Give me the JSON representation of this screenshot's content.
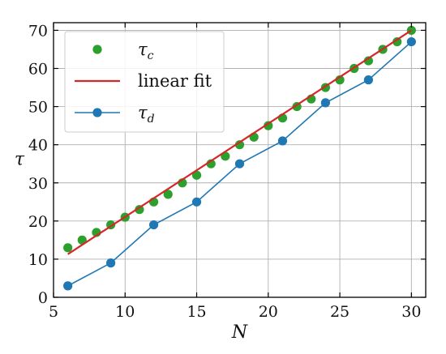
{
  "chart_data": {
    "type": "line",
    "xlabel": "N",
    "ylabel": "τ",
    "xlim": [
      5,
      31
    ],
    "ylim": [
      0,
      72
    ],
    "xticks": [
      5,
      10,
      15,
      20,
      25,
      30
    ],
    "yticks": [
      0,
      10,
      20,
      30,
      40,
      50,
      60,
      70
    ],
    "grid": true,
    "legend_position": "top-left",
    "series": [
      {
        "name": "τc",
        "name_base": "τ",
        "name_sub": "c",
        "kind": "scatter",
        "color": "#2ca02c",
        "x": [
          6,
          7,
          8,
          9,
          10,
          11,
          12,
          13,
          14,
          15,
          16,
          17,
          18,
          19,
          20,
          21,
          22,
          23,
          24,
          25,
          26,
          27,
          28,
          29,
          30
        ],
        "y": [
          13,
          15,
          17,
          19,
          21,
          23,
          25,
          27,
          30,
          32,
          35,
          37,
          40,
          42,
          45,
          47,
          50,
          52,
          55,
          57,
          60,
          62,
          65,
          67,
          70
        ]
      },
      {
        "name": "linear fit",
        "kind": "line",
        "color": "#d62728",
        "x": [
          6,
          30
        ],
        "y": [
          11.3,
          70
        ]
      },
      {
        "name": "τd",
        "name_base": "τ",
        "name_sub": "d",
        "kind": "line-marker",
        "color": "#1f77b4",
        "x": [
          6,
          9,
          12,
          15,
          18,
          21,
          24,
          27,
          30
        ],
        "y": [
          3,
          9,
          19,
          25,
          35,
          41,
          51,
          57,
          67
        ]
      }
    ]
  }
}
